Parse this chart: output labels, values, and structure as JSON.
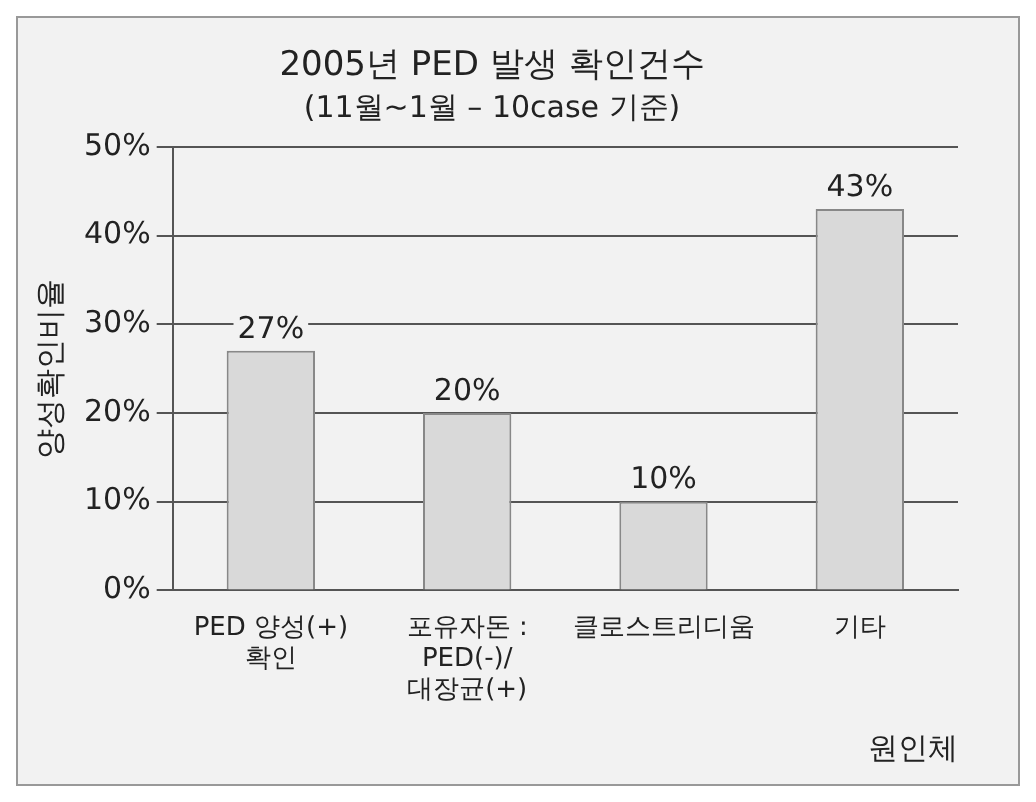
{
  "chart_data": {
    "type": "bar",
    "title": "2005년 PED 발생 확인건수",
    "subtitle": "(11월~1월 – 10case 기준)",
    "ylabel": "양성확인비율",
    "xlabel": "원인체",
    "categories": [
      "PED 양성(+)\n확인",
      "포유자돈 :\nPED(-)/\n대장균(+)",
      "클로스트리디움",
      "기타"
    ],
    "values": [
      27,
      20,
      10,
      43
    ],
    "value_labels": [
      "27%",
      "20%",
      "10%",
      "43%"
    ],
    "color": "#d9d9d9",
    "ylim": [
      0,
      50
    ],
    "yticks": [
      {
        "value": 0,
        "label": "0%"
      },
      {
        "value": 10,
        "label": "10%"
      },
      {
        "value": 20,
        "label": "20%"
      },
      {
        "value": 30,
        "label": "30%"
      },
      {
        "value": 40,
        "label": "40%"
      },
      {
        "value": 50,
        "label": "50%"
      }
    ],
    "grid": "y",
    "legend": false
  }
}
